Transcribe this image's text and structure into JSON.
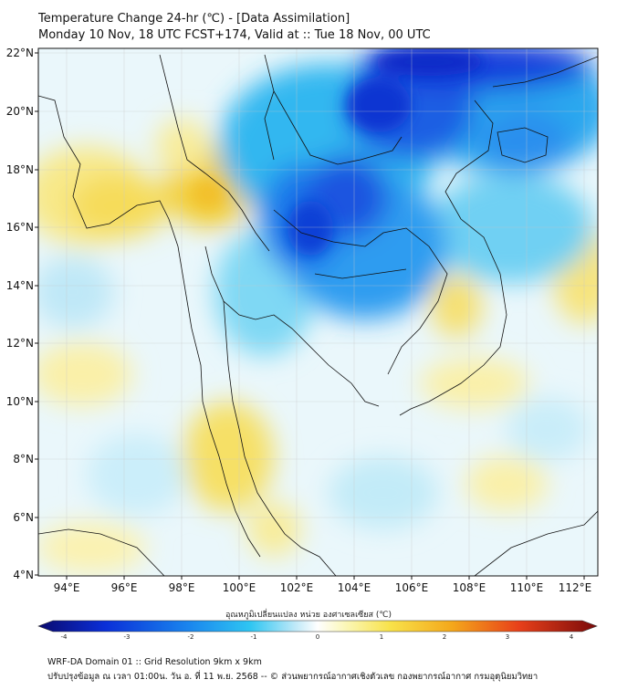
{
  "header": {
    "title_line1": "Temperature Change 24-hr (℃) - [Data Assimilation]",
    "title_line2": "Monday 10 Nov, 18 UTC FCST+174, Valid at :: Tue 18 Nov, 00 UTC"
  },
  "map": {
    "lat_labels": [
      "22°N",
      "20°N",
      "18°N",
      "16°N",
      "14°N",
      "12°N",
      "10°N",
      "8°N",
      "6°N",
      "4°N"
    ],
    "lon_labels": [
      "94°E",
      "96°E",
      "98°E",
      "100°E",
      "102°E",
      "104°E",
      "106°E",
      "108°E",
      "110°E",
      "112°E"
    ]
  },
  "colorbar": {
    "title": "อุณหภูมิเปลี่ยนแปลง หน่วย องศาเซลเซียส (℃)",
    "ticks": [
      "-4",
      "-3",
      "-2",
      "-1",
      "0",
      "1",
      "2",
      "3",
      "4"
    ]
  },
  "footer": {
    "line1": "WRF-DA Domain 01 :: Grid Resolution 9km x 9km",
    "line2": "ปรับปรุงข้อมูล ณ เวลา 01:00น. วัน อ. ที่ 11 พ.ย. 2568 -- © ส่วนพยากรณ์อากาศเชิงตัวเลข กองพยากรณ์อากาศ กรมอุตุนิยมวิทยา"
  }
}
